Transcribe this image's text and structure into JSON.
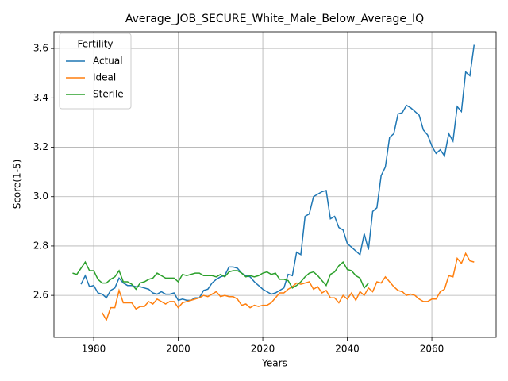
{
  "chart_data": {
    "type": "line",
    "title": "Average_JOB_SECURE_White_Male_Below_Average_IQ",
    "x_label": "Years",
    "y_label": "Score(1-5)",
    "legend_title": "Fertility",
    "legend_loc": "upper left",
    "grid": true,
    "xlim": [
      1970.6,
      2075.2
    ],
    "xticks": [
      1980,
      2000,
      2020,
      2040,
      2060
    ],
    "ylim": [
      2.43,
      3.668
    ],
    "yticks": [
      2.6,
      2.8,
      {
        "value": 3,
        "label": "3.0"
      },
      3.2,
      3.4,
      3.6
    ],
    "series": [
      {
        "name": "Actual",
        "color": "#1f77b4",
        "x": [
          1977,
          1978,
          1979,
          1980,
          1981,
          1982,
          1983,
          1984,
          1985,
          1986,
          1987,
          1988,
          1989,
          1990,
          1991,
          1992,
          1993,
          1994,
          1995,
          1996,
          1997,
          1998,
          1999,
          2000,
          2001,
          2002,
          2003,
          2004,
          2005,
          2006,
          2007,
          2008,
          2009,
          2010,
          2011,
          2012,
          2013,
          2014,
          2015,
          2016,
          2017,
          2018,
          2019,
          2020,
          2021,
          2022,
          2023,
          2024,
          2025,
          2026,
          2027,
          2028,
          2029,
          2030,
          2031,
          2032,
          2033,
          2034,
          2035,
          2036,
          2037,
          2038,
          2039,
          2040,
          2041,
          2042,
          2043,
          2044,
          2045,
          2046,
          2047,
          2048,
          2049,
          2050,
          2051,
          2052,
          2053,
          2054,
          2055,
          2056,
          2057,
          2058,
          2059,
          2060,
          2061,
          2062,
          2063,
          2064,
          2065,
          2066,
          2067,
          2068,
          2069,
          2070
        ],
        "values": [
          2.645,
          2.68,
          2.635,
          2.64,
          2.61,
          2.605,
          2.59,
          2.62,
          2.63,
          2.67,
          2.65,
          2.64,
          2.64,
          2.635,
          2.635,
          2.63,
          2.625,
          2.61,
          2.605,
          2.615,
          2.605,
          2.605,
          2.61,
          2.58,
          2.585,
          2.58,
          2.58,
          2.59,
          2.59,
          2.62,
          2.625,
          2.65,
          2.665,
          2.675,
          2.68,
          2.715,
          2.715,
          2.71,
          2.69,
          2.68,
          2.675,
          2.655,
          2.64,
          2.625,
          2.615,
          2.605,
          2.61,
          2.62,
          2.63,
          2.685,
          2.68,
          2.775,
          2.765,
          2.92,
          2.93,
          3.0,
          3.01,
          3.02,
          3.025,
          2.91,
          2.92,
          2.875,
          2.865,
          2.81,
          2.795,
          2.78,
          2.765,
          2.85,
          2.785,
          2.94,
          2.955,
          3.085,
          3.12,
          3.24,
          3.255,
          3.335,
          3.34,
          3.37,
          3.36,
          3.345,
          3.33,
          3.27,
          3.25,
          3.205,
          3.175,
          3.19,
          3.165,
          3.255,
          3.225,
          3.365,
          3.345,
          3.505,
          3.49,
          3.615
        ]
      },
      {
        "name": "Ideal",
        "color": "#ff7f0e",
        "x": [
          1982,
          1983,
          1984,
          1985,
          1986,
          1987,
          1988,
          1989,
          1990,
          1991,
          1992,
          1993,
          1994,
          1995,
          1996,
          1997,
          1998,
          1999,
          2000,
          2001,
          2002,
          2003,
          2004,
          2005,
          2006,
          2007,
          2008,
          2009,
          2010,
          2011,
          2012,
          2013,
          2014,
          2015,
          2016,
          2017,
          2018,
          2019,
          2020,
          2021,
          2022,
          2023,
          2024,
          2025,
          2026,
          2027,
          2028,
          2029,
          2030,
          2031,
          2032,
          2033,
          2034,
          2035,
          2036,
          2037,
          2038,
          2039,
          2040,
          2041,
          2042,
          2043,
          2044,
          2045,
          2046,
          2047,
          2048,
          2049,
          2050,
          2051,
          2052,
          2053,
          2054,
          2055,
          2056,
          2057,
          2058,
          2059,
          2060,
          2061,
          2062,
          2063,
          2064,
          2065,
          2066,
          2067,
          2068,
          2069,
          2070
        ],
        "values": [
          2.53,
          2.5,
          2.55,
          2.55,
          2.62,
          2.57,
          2.57,
          2.57,
          2.545,
          2.555,
          2.555,
          2.575,
          2.565,
          2.585,
          2.575,
          2.565,
          2.575,
          2.575,
          2.55,
          2.57,
          2.575,
          2.58,
          2.585,
          2.59,
          2.6,
          2.595,
          2.605,
          2.615,
          2.595,
          2.6,
          2.595,
          2.595,
          2.585,
          2.56,
          2.565,
          2.55,
          2.56,
          2.555,
          2.56,
          2.56,
          2.57,
          2.59,
          2.61,
          2.61,
          2.625,
          2.635,
          2.65,
          2.645,
          2.65,
          2.655,
          2.625,
          2.635,
          2.61,
          2.62,
          2.59,
          2.59,
          2.57,
          2.6,
          2.585,
          2.61,
          2.58,
          2.615,
          2.6,
          2.63,
          2.615,
          2.655,
          2.65,
          2.675,
          2.655,
          2.635,
          2.62,
          2.615,
          2.6,
          2.605,
          2.6,
          2.585,
          2.575,
          2.575,
          2.585,
          2.585,
          2.615,
          2.625,
          2.68,
          2.675,
          2.75,
          2.73,
          2.77,
          2.74,
          2.735
        ]
      },
      {
        "name": "Sterile",
        "color": "#2ca02c",
        "x": [
          1975,
          1976,
          1977,
          1978,
          1979,
          1980,
          1981,
          1982,
          1983,
          1984,
          1985,
          1986,
          1987,
          1988,
          1989,
          1990,
          1991,
          1992,
          1993,
          1994,
          1995,
          1996,
          1997,
          1998,
          1999,
          2000,
          2001,
          2002,
          2003,
          2004,
          2005,
          2006,
          2007,
          2008,
          2009,
          2010,
          2011,
          2012,
          2013,
          2014,
          2015,
          2016,
          2017,
          2018,
          2019,
          2020,
          2021,
          2022,
          2023,
          2024,
          2025,
          2026,
          2027,
          2028,
          2029,
          2030,
          2031,
          2032,
          2033,
          2034,
          2035,
          2036,
          2037,
          2038,
          2039,
          2040,
          2041,
          2042,
          2043,
          2044,
          2045
        ],
        "values": [
          2.69,
          2.685,
          2.71,
          2.735,
          2.7,
          2.7,
          2.665,
          2.65,
          2.65,
          2.665,
          2.675,
          2.7,
          2.655,
          2.655,
          2.645,
          2.625,
          2.65,
          2.655,
          2.665,
          2.67,
          2.69,
          2.68,
          2.67,
          2.67,
          2.67,
          2.655,
          2.685,
          2.68,
          2.685,
          2.69,
          2.69,
          2.68,
          2.68,
          2.68,
          2.675,
          2.685,
          2.675,
          2.695,
          2.7,
          2.7,
          2.69,
          2.675,
          2.68,
          2.675,
          2.68,
          2.69,
          2.695,
          2.685,
          2.69,
          2.665,
          2.665,
          2.66,
          2.63,
          2.64,
          2.655,
          2.675,
          2.69,
          2.695,
          2.68,
          2.66,
          2.64,
          2.685,
          2.695,
          2.72,
          2.735,
          2.705,
          2.7,
          2.68,
          2.67,
          2.63,
          2.65
        ]
      }
    ]
  }
}
